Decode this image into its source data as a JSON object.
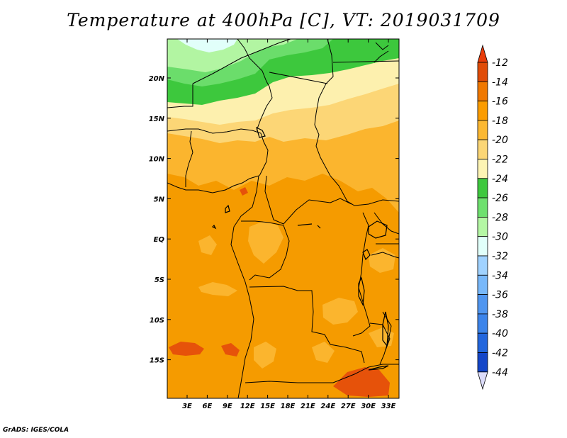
{
  "title": "Temperature at 400hPa [C], VT: 2019031709",
  "credit": "GrADS: IGES/COLA",
  "map": {
    "lat_labels": [
      "20N",
      "15N",
      "10N",
      "5N",
      "EQ",
      "5S",
      "10S",
      "15S"
    ],
    "lon_labels": [
      "3E",
      "6E",
      "9E",
      "12E",
      "15E",
      "18E",
      "21E",
      "24E",
      "27E",
      "30E",
      "33E"
    ]
  },
  "colorbar": {
    "levels": [
      "-12",
      "-14",
      "-16",
      "-18",
      "-20",
      "-22",
      "-24",
      "-26",
      "-28",
      "-30",
      "-32",
      "-34",
      "-36",
      "-38",
      "-40",
      "-42",
      "-44"
    ],
    "colors": [
      "#e04c08",
      "#f07800",
      "#fb9c00",
      "#fbb832",
      "#fbd676",
      "#fdf4b4",
      "#3ec83e",
      "#6ee06e",
      "#b4f7a4",
      "#e1fffa",
      "#a0d2ff",
      "#78b8fa",
      "#5096f0",
      "#3c84ea",
      "#2266dd",
      "#1446c8",
      "#0a0a78"
    ],
    "end_colors": {
      "top": "#e83c0a",
      "bottom": "#dcdcfa"
    }
  }
}
